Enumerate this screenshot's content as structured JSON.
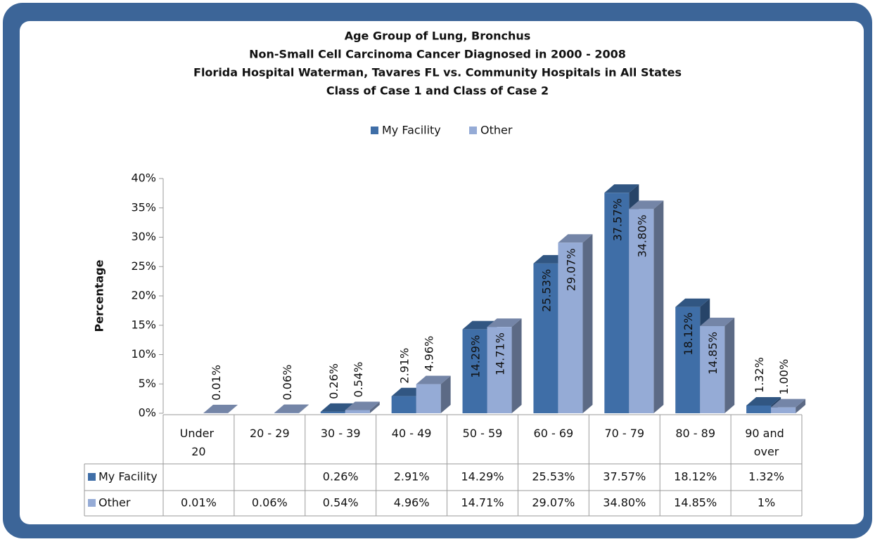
{
  "chart_data": {
    "type": "bar3d",
    "title": [
      "Age Group of Lung, Bronchus",
      "Non-Small Cell Carcinoma Cancer Diagnosed in 2000 - 2008",
      "Florida Hospital Waterman, Tavares FL vs. Community Hospitals in All States",
      "Class of Case 1 and Class of Case 2"
    ],
    "ylabel": "Percentage",
    "categories": [
      "Under 20",
      "20 - 29",
      "30 - 39",
      "40 - 49",
      "50 - 59",
      "60 - 69",
      "70 - 79",
      "80 - 89",
      "90 and over"
    ],
    "series": [
      {
        "name": "My Facility",
        "color": "#3f6ea7",
        "values": [
          null,
          null,
          0.26,
          2.91,
          14.29,
          25.53,
          37.57,
          18.12,
          1.32
        ],
        "value_labels": [
          null,
          null,
          "0.26%",
          "2.91%",
          "14.29%",
          "25.53%",
          "37.57%",
          "18.12%",
          "1.32%"
        ],
        "table_labels": [
          null,
          null,
          "0.26%",
          "2.91%",
          "14.29%",
          "25.53%",
          "37.57%",
          "18.12%",
          "1.32%"
        ]
      },
      {
        "name": "Other",
        "color": "#95abd6",
        "values": [
          0.01,
          0.06,
          0.54,
          4.96,
          14.71,
          29.07,
          34.8,
          14.85,
          1.0
        ],
        "value_labels": [
          "0.01%",
          "0.06%",
          "0.54%",
          "4.96%",
          "14.71%",
          "29.07%",
          "34.80%",
          "14.85%",
          "1.00%"
        ],
        "table_labels": [
          "0.01%",
          "0.06%",
          "0.54%",
          "4.96%",
          "14.71%",
          "29.07%",
          "34.80%",
          "14.85%",
          "1%"
        ]
      }
    ],
    "ylim": [
      0,
      40
    ],
    "yticks": [
      {
        "value": 0,
        "label": "0%"
      },
      {
        "value": 5,
        "label": "5%"
      },
      {
        "value": 10,
        "label": "10%"
      },
      {
        "value": 15,
        "label": "15%"
      },
      {
        "value": 20,
        "label": "20%"
      },
      {
        "value": 25,
        "label": "25%"
      },
      {
        "value": 30,
        "label": "30%"
      },
      {
        "value": 35,
        "label": "35%"
      },
      {
        "value": 40,
        "label": "40%"
      }
    ],
    "legend": "top"
  }
}
